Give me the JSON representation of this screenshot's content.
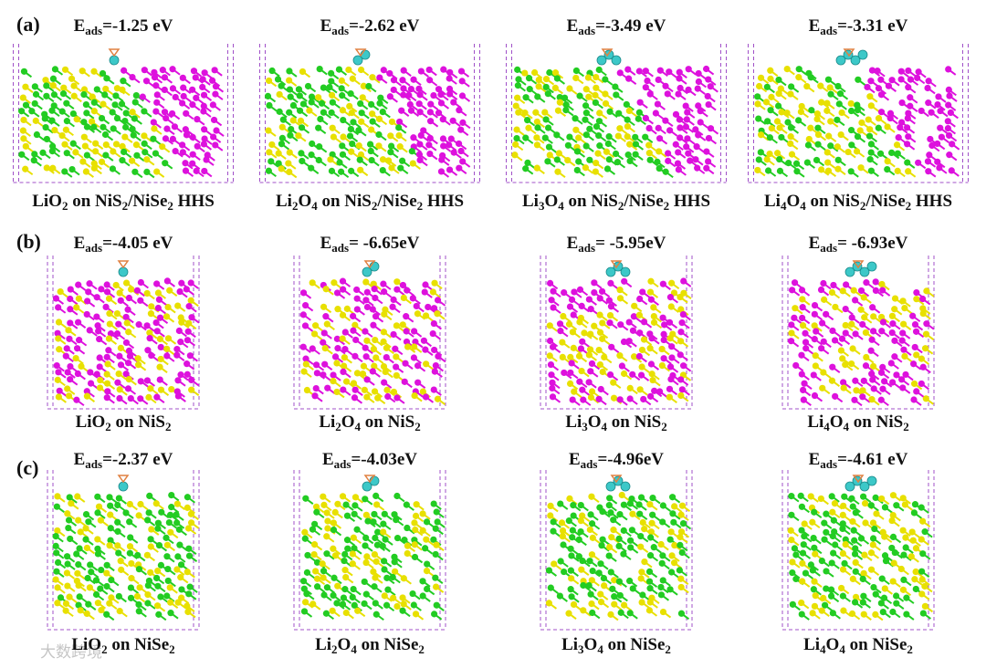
{
  "rows": [
    {
      "label": "(a)",
      "items": [
        {
          "energy": "Eads=-1.25 eV",
          "caption": "LiO2 on NiS2/NiSe2 HHS"
        },
        {
          "energy": "Eads=-2.62 eV",
          "caption": "Li2O4 on NiS2/NiSe2 HHS"
        },
        {
          "energy": "Eads=-3.49 eV",
          "caption": "Li3O4 on NiS2/NiSe2 HHS"
        },
        {
          "energy": "Eads=-3.31 eV",
          "caption": "Li4O4 on NiS2/NiSe2 HHS"
        }
      ]
    },
    {
      "label": "(b)",
      "items": [
        {
          "energy": "Eads=-4.05 eV",
          "caption": "LiO2 on NiS2"
        },
        {
          "energy": "Eads= -6.65eV",
          "caption": "Li2O4 on NiS2"
        },
        {
          "energy": "Eads= -5.95eV",
          "caption": "Li3O4 on NiS2"
        },
        {
          "energy": "Eads= -6.93eV",
          "caption": "Li4O4 on NiS2"
        }
      ]
    },
    {
      "label": "(c)",
      "items": [
        {
          "energy": "Eads=-2.37 eV",
          "caption": "LiO2 on NiSe2"
        },
        {
          "energy": "Eads=-4.03eV",
          "caption": "Li2O4 on NiSe2"
        },
        {
          "energy": "Eads=-4.96eV",
          "caption": "Li3O4 on NiSe2"
        },
        {
          "energy": "Eads=-4.61 eV",
          "caption": "Li4O4 on NiSe2"
        }
      ]
    }
  ],
  "watermark": "大数跨境"
}
